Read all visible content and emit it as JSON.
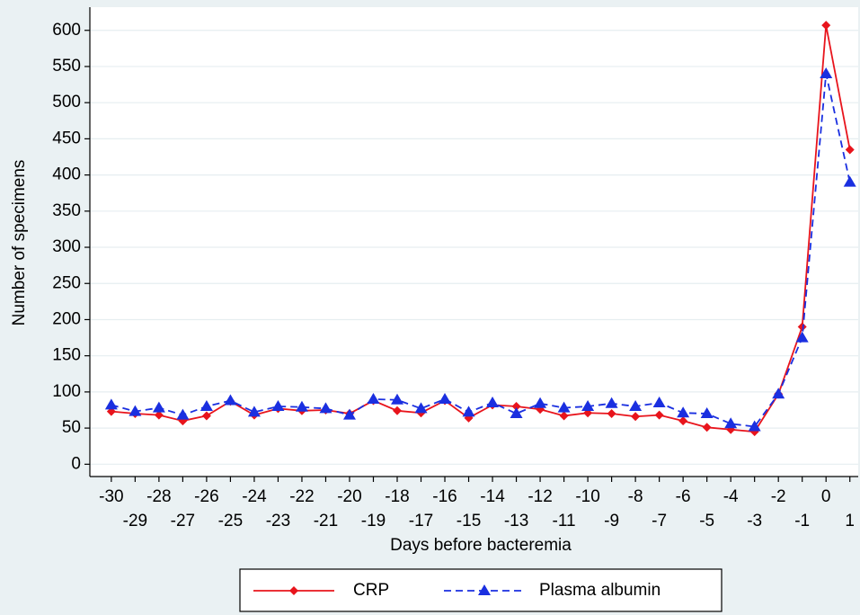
{
  "chart_data": {
    "type": "line",
    "y_label": "Number of specimens",
    "x_label": "Days before bacteremia",
    "x": [
      -30,
      -29,
      -28,
      -27,
      -26,
      -25,
      -24,
      -23,
      -22,
      -21,
      -20,
      -19,
      -18,
      -17,
      -16,
      -15,
      -14,
      -13,
      -12,
      -11,
      -10,
      -9,
      -8,
      -7,
      -6,
      -5,
      -4,
      -3,
      -2,
      -1,
      0,
      1
    ],
    "series": [
      {
        "name": "CRP",
        "color": "#e8141c",
        "marker": "diamond",
        "dash": false,
        "values": [
          73,
          70,
          68,
          60,
          67,
          87,
          68,
          77,
          74,
          75,
          70,
          88,
          74,
          71,
          88,
          64,
          82,
          80,
          76,
          67,
          71,
          70,
          66,
          68,
          60,
          51,
          48,
          45,
          97,
          190,
          607,
          435
        ]
      },
      {
        "name": "Plasma albumin",
        "color": "#1a2fe0",
        "marker": "triangle",
        "dash": true,
        "values": [
          82,
          73,
          78,
          68,
          80,
          88,
          72,
          80,
          79,
          77,
          68,
          90,
          89,
          77,
          90,
          72,
          85,
          70,
          84,
          78,
          80,
          84,
          80,
          85,
          71,
          70,
          56,
          52,
          97,
          175,
          540,
          390
        ]
      }
    ],
    "xlim": [
      -30.9,
      1.35
    ],
    "ylim": [
      -17,
      632
    ],
    "xticks": [
      -30,
      -29,
      -28,
      -27,
      -26,
      -25,
      -24,
      -23,
      -22,
      -21,
      -20,
      -19,
      -18,
      -17,
      -16,
      -15,
      -14,
      -13,
      -12,
      -11,
      -10,
      -9,
      -8,
      -7,
      -6,
      -5,
      -4,
      -3,
      -2,
      -1,
      0,
      1
    ],
    "yticks": [
      0,
      50,
      100,
      150,
      200,
      250,
      300,
      350,
      400,
      450,
      500,
      550,
      600
    ],
    "grid": true
  }
}
